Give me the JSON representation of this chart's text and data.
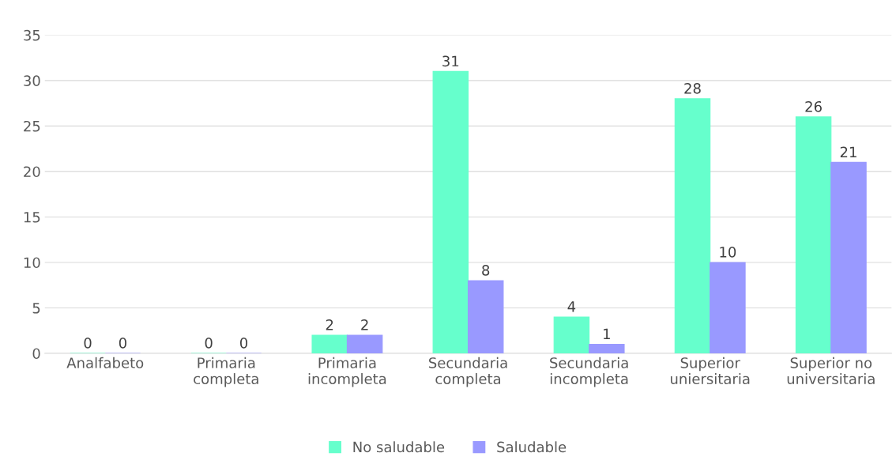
{
  "chart_data": {
    "type": "bar",
    "categories": [
      "Analfabeto",
      "Primaria\ncompleta",
      "Primaria\nincompleta",
      "Secundaria\ncompleta",
      "Secundaria\nincompleta",
      "Superior\nuniersitaria",
      "Superior no\nuniversitaria"
    ],
    "series": [
      {
        "name": "No saludable",
        "color": "#66ffcc",
        "values": [
          0,
          0,
          2,
          31,
          4,
          28,
          26
        ]
      },
      {
        "name": "Saludable",
        "color": "#9999ff",
        "values": [
          0,
          0,
          2,
          8,
          1,
          10,
          21
        ]
      }
    ],
    "ylim": [
      0,
      35
    ],
    "yticks": [
      0,
      5,
      10,
      15,
      20,
      25,
      30,
      35
    ],
    "grid": "y",
    "legend": "bottom",
    "data_labels": true
  }
}
